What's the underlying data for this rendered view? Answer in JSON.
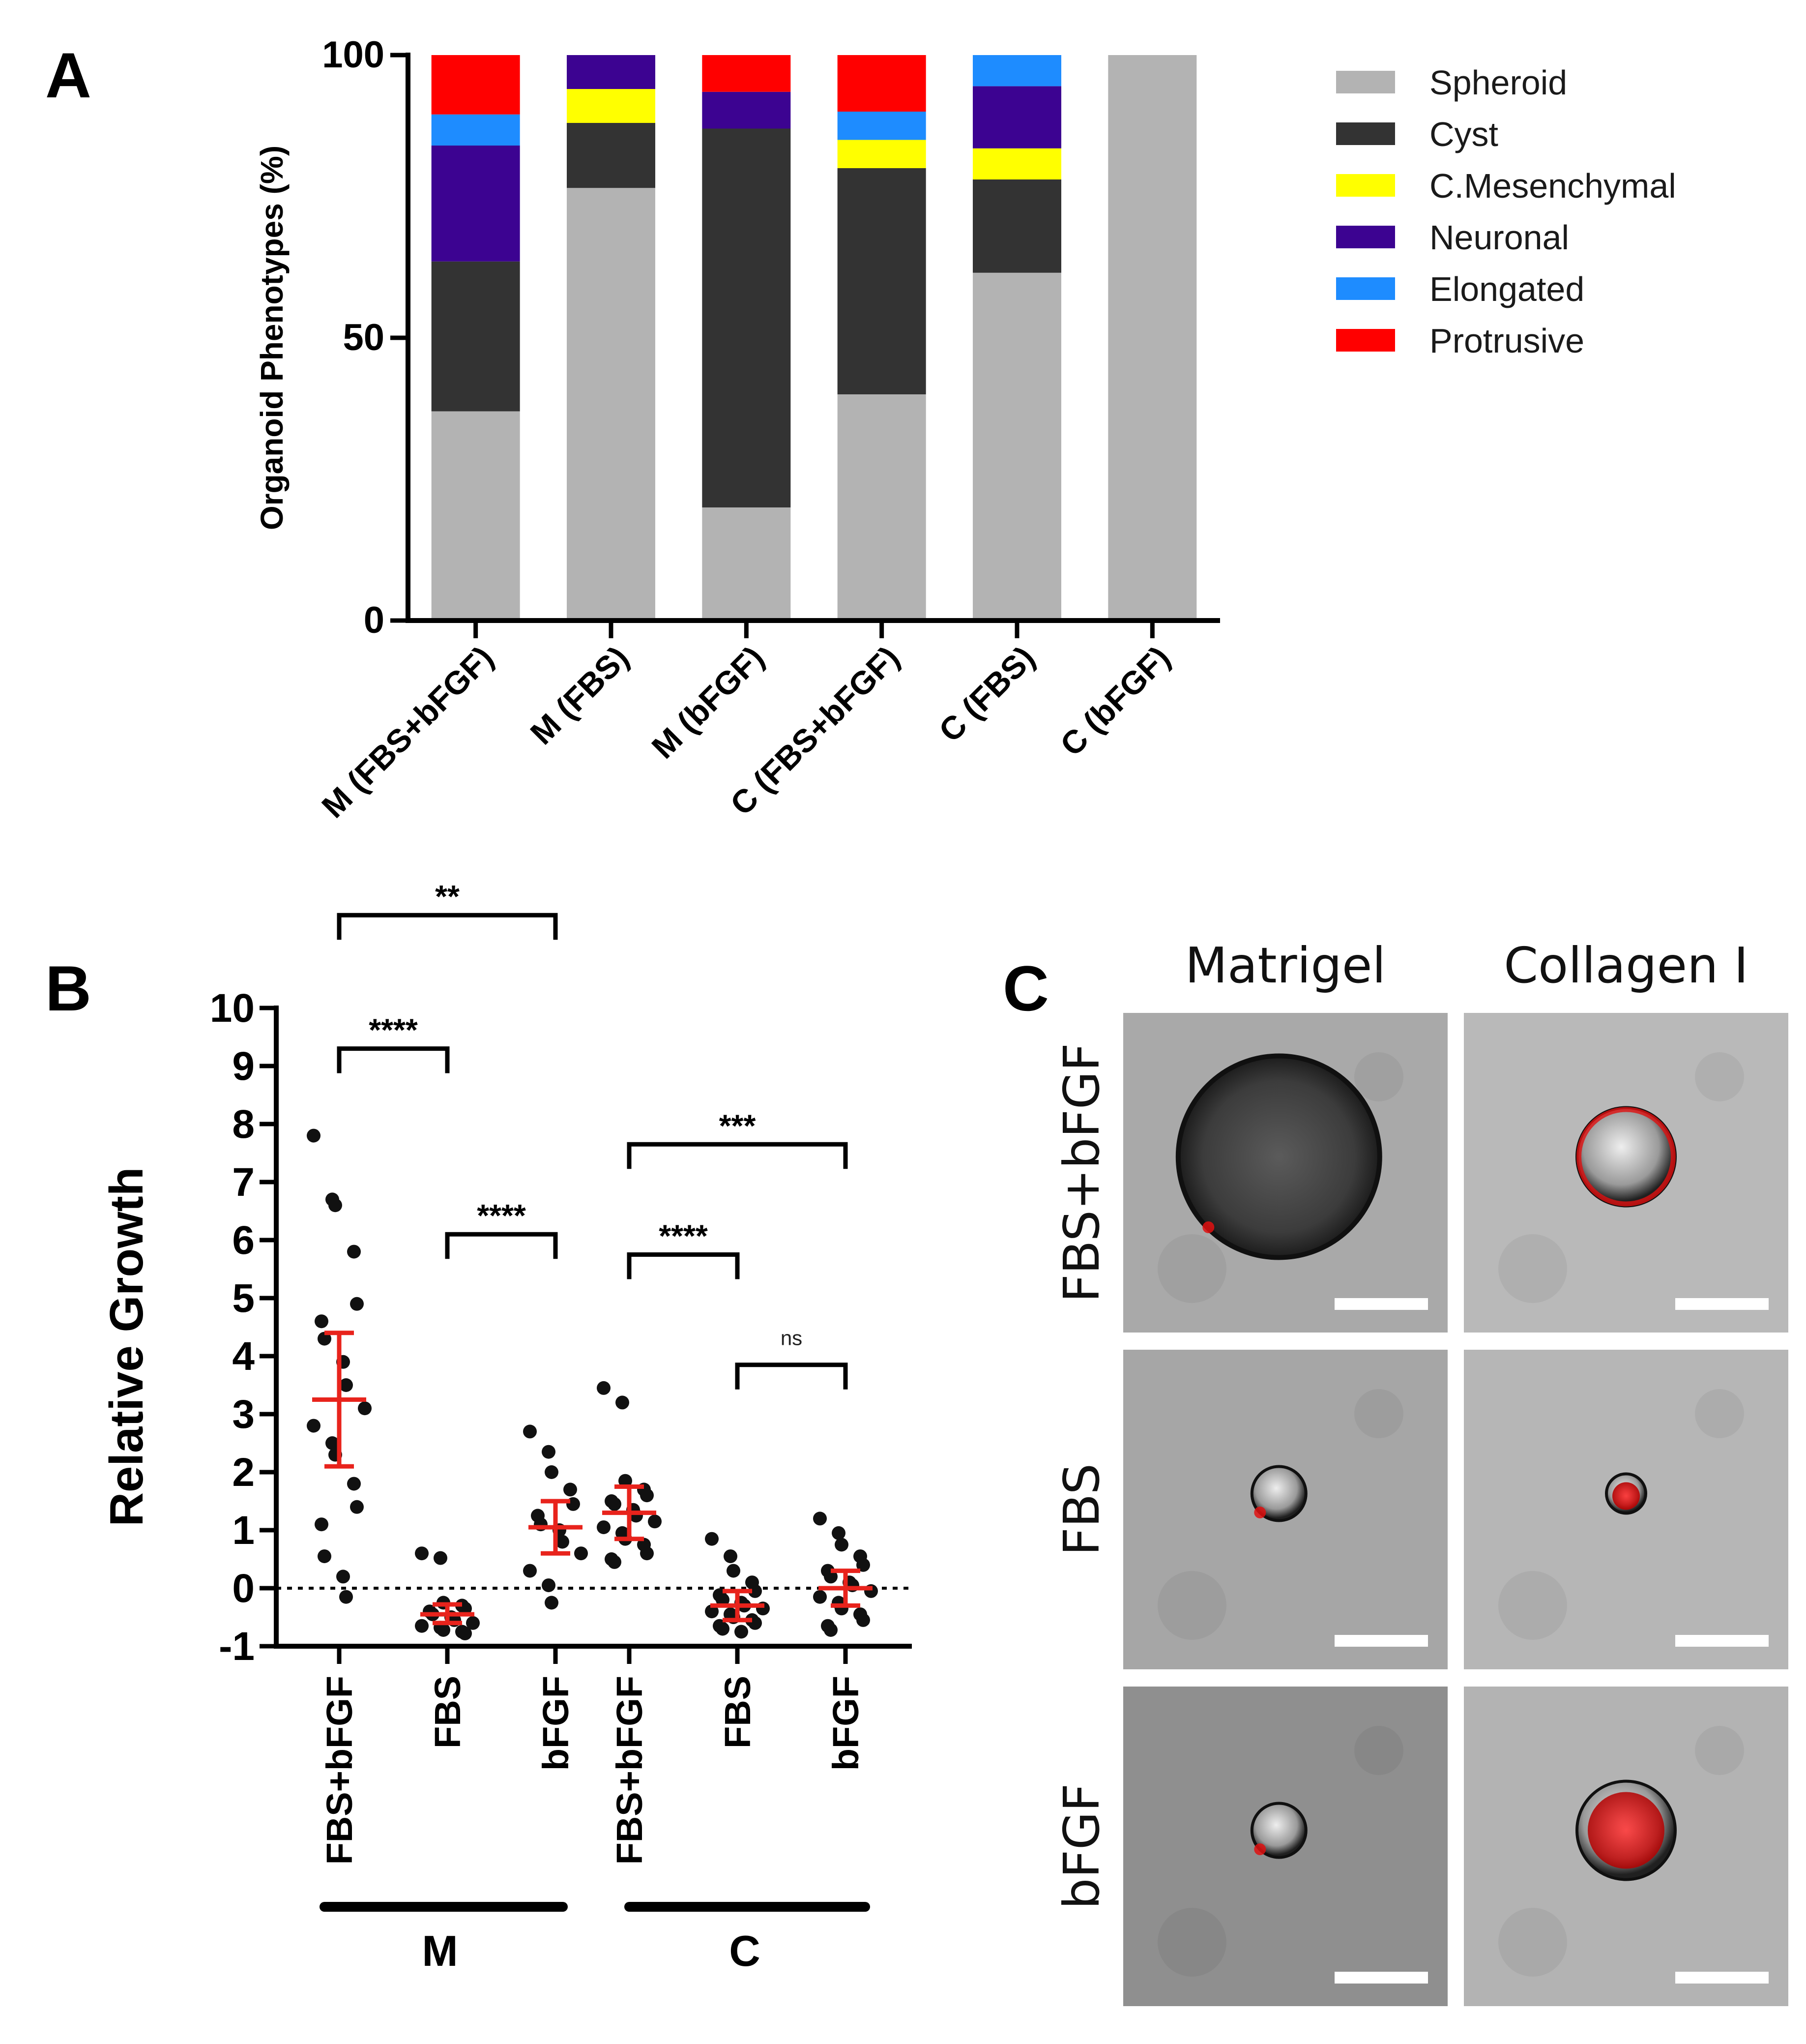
{
  "panel_labels": {
    "a": "A",
    "b": "B",
    "c": "C"
  },
  "colors": {
    "spheroid": "#b3b3b3",
    "cyst": "#333333",
    "c_mesenchymal": "#ffff00",
    "neuronal": "#3c0391",
    "elongated": "#1e8cff",
    "protrusive": "#ff0000",
    "mean_sd": "#e8231c",
    "point": "#111111"
  },
  "chart_data": [
    {
      "type": "bar",
      "stacked": true,
      "panel": "A",
      "title": "",
      "ylabel": "Organoid Phenotypes (%)",
      "xlabel": "",
      "ylim": [
        0,
        100
      ],
      "yticks": [
        "0",
        "50",
        "100"
      ],
      "ytick_values": [
        0,
        50,
        100
      ],
      "legend_position": "right",
      "categories": [
        "M (FBS+bFGF)",
        "M (FBS)",
        "M (bFGF)",
        "C (FBS+bFGF)",
        "C (FBS)",
        "C (bFGF)"
      ],
      "series": [
        {
          "name": "Spheroid",
          "color_key": "spheroid",
          "values": [
            37,
            76.5,
            20,
            40,
            61.5,
            100
          ]
        },
        {
          "name": "Cyst",
          "color_key": "cyst",
          "values": [
            26.5,
            11.5,
            67,
            40,
            16.5,
            0
          ]
        },
        {
          "name": "C.Mesenchymal",
          "color_key": "c_mesenchymal",
          "values": [
            0,
            6,
            0,
            5,
            5.5,
            0
          ]
        },
        {
          "name": "Neuronal",
          "color_key": "neuronal",
          "values": [
            20.5,
            6,
            6.5,
            0,
            11,
            0
          ]
        },
        {
          "name": "Elongated",
          "color_key": "elongated",
          "values": [
            5.5,
            0,
            0,
            5,
            5.5,
            0
          ]
        },
        {
          "name": "Protrusive",
          "color_key": "protrusive",
          "values": [
            10.5,
            0,
            6.5,
            10,
            0,
            0
          ]
        }
      ]
    },
    {
      "type": "scatter",
      "panel": "B",
      "title": "",
      "ylabel": "Relative Growth",
      "xlabel": "",
      "ylim": [
        -1,
        10
      ],
      "yticks": [
        "-1",
        "0",
        "1",
        "2",
        "3",
        "4",
        "5",
        "6",
        "7",
        "8",
        "9",
        "10"
      ],
      "ytick_values": [
        -1,
        0,
        1,
        2,
        3,
        4,
        5,
        6,
        7,
        8,
        9,
        10
      ],
      "reference_line": 0,
      "groups": [
        {
          "label": "FBS+bFGF",
          "condition": "M",
          "mean": 3.25,
          "sd_low": 2.1,
          "sd_high": 4.4,
          "points": [
            7.8,
            6.7,
            6.6,
            5.8,
            4.9,
            4.6,
            4.3,
            3.9,
            3.5,
            3.1,
            2.8,
            2.5,
            2.3,
            1.8,
            1.4,
            1.1,
            0.55,
            0.2,
            -0.15
          ]
        },
        {
          "label": "FBS",
          "condition": "M",
          "mean": -0.45,
          "sd_low": -0.6,
          "sd_high": -0.28,
          "points": [
            0.6,
            0.52,
            -0.25,
            -0.3,
            -0.35,
            -0.4,
            -0.45,
            -0.5,
            -0.55,
            -0.6,
            -0.65,
            -0.68,
            -0.72,
            -0.75,
            -0.78
          ]
        },
        {
          "label": "bFGF",
          "condition": "M",
          "mean": 1.05,
          "sd_low": 0.6,
          "sd_high": 1.5,
          "points": [
            2.7,
            2.35,
            2.0,
            1.7,
            1.45,
            1.25,
            1.1,
            1.0,
            0.8,
            0.6,
            0.3,
            0.05,
            -0.25
          ]
        },
        {
          "label": "FBS+bFGF",
          "condition": "C",
          "mean": 1.3,
          "sd_low": 0.85,
          "sd_high": 1.75,
          "points": [
            3.45,
            3.2,
            1.85,
            1.7,
            1.6,
            1.5,
            1.45,
            1.35,
            1.25,
            1.15,
            1.05,
            0.95,
            0.85,
            0.75,
            0.6,
            0.5,
            0.45
          ]
        },
        {
          "label": "FBS",
          "condition": "C",
          "mean": -0.3,
          "sd_low": -0.55,
          "sd_high": -0.05,
          "points": [
            0.85,
            0.55,
            0.3,
            0.1,
            -0.05,
            -0.12,
            -0.2,
            -0.25,
            -0.3,
            -0.35,
            -0.4,
            -0.45,
            -0.5,
            -0.55,
            -0.6,
            -0.65,
            -0.7,
            -0.75
          ]
        },
        {
          "label": "bFGF",
          "condition": "C",
          "mean": 0.0,
          "sd_low": -0.3,
          "sd_high": 0.3,
          "points": [
            1.2,
            0.95,
            0.75,
            0.55,
            0.4,
            0.3,
            0.2,
            0.1,
            0.05,
            -0.05,
            -0.15,
            -0.25,
            -0.35,
            -0.45,
            -0.55,
            -0.65,
            -0.72
          ]
        }
      ],
      "conditions": [
        "M",
        "C"
      ],
      "comparisons": [
        {
          "from": 0,
          "to": 2,
          "label": "**",
          "bracket_y": 11.6
        },
        {
          "from": 0,
          "to": 1,
          "label": "****",
          "bracket_y": 9.3
        },
        {
          "from": 1,
          "to": 2,
          "label": "****",
          "bracket_y": 6.1
        },
        {
          "from": 3,
          "to": 5,
          "label": "***",
          "bracket_y": 7.65
        },
        {
          "from": 3,
          "to": 4,
          "label": "****",
          "bracket_y": 5.75
        },
        {
          "from": 4,
          "to": 5,
          "label": "ns",
          "bracket_y": 3.85
        }
      ]
    }
  ],
  "panel_c": {
    "column_headers": [
      "Matrigel",
      "Collagen I"
    ],
    "row_labels": [
      "FBS+bFGF",
      "FBS",
      "bFGF"
    ],
    "images": [
      {
        "row": 0,
        "col": 0,
        "name": "matrigel-fbs-bfgf-image",
        "organoid": "large",
        "red": "low",
        "bg": "#a9a9a9"
      },
      {
        "row": 0,
        "col": 1,
        "name": "collagen-fbs-bfgf-image",
        "organoid": "medium",
        "red": "rim",
        "bg": "#b9b9b9"
      },
      {
        "row": 1,
        "col": 0,
        "name": "matrigel-fbs-image",
        "organoid": "small",
        "red": "low",
        "bg": "#a6a6a6"
      },
      {
        "row": 1,
        "col": 1,
        "name": "collagen-fbs-image",
        "organoid": "tiny",
        "red": "core",
        "bg": "#b6b6b6"
      },
      {
        "row": 2,
        "col": 0,
        "name": "matrigel-bfgf-image",
        "organoid": "small",
        "red": "low",
        "bg": "#8f8f8f"
      },
      {
        "row": 2,
        "col": 1,
        "name": "collagen-bfgf-image",
        "organoid": "medium",
        "red": "high",
        "bg": "#b3b3b3"
      }
    ]
  }
}
